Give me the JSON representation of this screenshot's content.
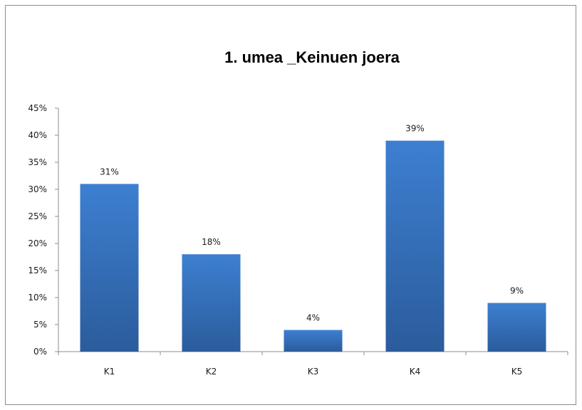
{
  "chart_data": {
    "type": "bar",
    "title": "1. umea _Keinuen joera",
    "xlabel": "",
    "ylabel": "",
    "categories": [
      "K1",
      "K2",
      "K3",
      "K4",
      "K5"
    ],
    "values": [
      31,
      18,
      4,
      39,
      9
    ],
    "data_labels": [
      "31%",
      "18%",
      "4%",
      "39%",
      "9%"
    ],
    "y_ticks": [
      "0%",
      "5%",
      "10%",
      "15%",
      "20%",
      "25%",
      "30%",
      "35%",
      "40%",
      "45%"
    ],
    "ylim": [
      0,
      45
    ],
    "grid": false,
    "legend": "none",
    "colors": {
      "bar_top": "#3d7fd1",
      "bar_bottom": "#2b5c9c",
      "axis": "#8c8c8c",
      "border": "#8c8c8c"
    }
  }
}
